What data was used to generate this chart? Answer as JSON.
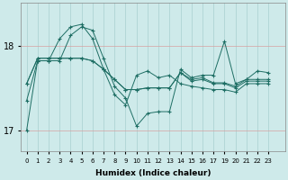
{
  "xlabel": "Humidex (Indice chaleur)",
  "bg_color": "#ceeaea",
  "grid_color_x": "#a8d0d0",
  "grid_color_y": "#d8a0a0",
  "line_color": "#1e6e64",
  "xlim": [
    -0.5,
    23.5
  ],
  "ylim": [
    16.75,
    18.5
  ],
  "y_ticks": [
    17,
    18
  ],
  "x_labels": [
    "0",
    "1",
    "2",
    "3",
    "4",
    "5",
    "6",
    "7",
    "8",
    "9",
    "10",
    "11",
    "12",
    "13",
    "14",
    "15",
    "16",
    "17",
    "19",
    "20",
    "21",
    "22",
    "23"
  ],
  "series": [
    [
      17.55,
      17.85,
      17.85,
      17.85,
      17.85,
      17.85,
      17.82,
      17.72,
      17.6,
      17.48,
      17.48,
      17.5,
      17.5,
      17.5,
      17.68,
      17.58,
      17.6,
      17.55,
      17.55,
      17.5,
      17.58,
      17.58,
      17.58
    ],
    [
      17.55,
      17.85,
      17.85,
      17.85,
      17.85,
      17.85,
      17.82,
      17.72,
      17.6,
      17.48,
      17.48,
      17.5,
      17.5,
      17.5,
      17.68,
      17.6,
      17.62,
      17.56,
      17.56,
      17.52,
      17.6,
      17.6,
      17.6
    ],
    [
      17.0,
      17.82,
      17.82,
      17.82,
      18.12,
      18.22,
      18.18,
      17.85,
      17.52,
      17.38,
      17.05,
      17.2,
      17.22,
      17.22,
      17.72,
      17.62,
      17.65,
      17.65,
      18.05,
      17.55,
      17.6,
      17.7,
      17.68
    ],
    [
      17.35,
      17.82,
      17.82,
      18.08,
      18.22,
      18.25,
      18.08,
      17.72,
      17.42,
      17.3,
      17.65,
      17.7,
      17.62,
      17.65,
      17.55,
      17.52,
      17.5,
      17.48,
      17.48,
      17.45,
      17.55,
      17.55,
      17.55
    ]
  ]
}
